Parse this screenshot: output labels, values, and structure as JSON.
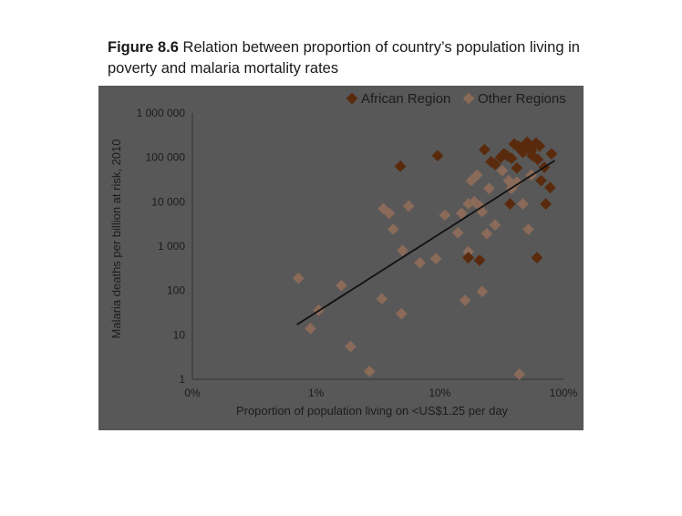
{
  "figure": {
    "label": "Figure 8.6",
    "caption": "Relation between proportion of country’s population living in poverty and malaria mortality rates"
  },
  "colors": {
    "background": "#585858",
    "african": "#5a2a0d",
    "other": "#8a6a58",
    "trend": "#111111"
  },
  "chart_data": {
    "type": "scatter",
    "title": "Relation between proportion of country’s population living in poverty and malaria mortality rates",
    "xlabel": "Proportion of population living on <US$1.25 per day",
    "ylabel": "Malaria deaths per billion at risk, 2010",
    "x_scale": "log",
    "y_scale": "log",
    "xlim": [
      0.1,
      100
    ],
    "ylim": [
      1,
      1000000
    ],
    "x_ticks": [
      {
        "value": 0.1,
        "label": "0%"
      },
      {
        "value": 1,
        "label": "1%"
      },
      {
        "value": 10,
        "label": "10%"
      },
      {
        "value": 100,
        "label": "100%"
      }
    ],
    "y_ticks": [
      {
        "value": 1,
        "label": "1"
      },
      {
        "value": 10,
        "label": "10"
      },
      {
        "value": 100,
        "label": "100"
      },
      {
        "value": 1000,
        "label": "1 000"
      },
      {
        "value": 10000,
        "label": "10 000"
      },
      {
        "value": 100000,
        "label": "100 000"
      },
      {
        "value": 1000000,
        "label": "1 000 000"
      }
    ],
    "legend_position": "top-right",
    "grid": false,
    "series": [
      {
        "name": "African Region",
        "color": "#5a2a0d",
        "points": [
          [
            4.8,
            63000
          ],
          [
            9.6,
            110000
          ],
          [
            17,
            550
          ],
          [
            21,
            480
          ],
          [
            23,
            150000
          ],
          [
            26,
            80000
          ],
          [
            28,
            70000
          ],
          [
            31,
            100000
          ],
          [
            33,
            120000
          ],
          [
            35,
            110000
          ],
          [
            37,
            9000
          ],
          [
            38,
            95000
          ],
          [
            40,
            200000
          ],
          [
            42,
            58000
          ],
          [
            43,
            180000
          ],
          [
            45,
            150000
          ],
          [
            47,
            130000
          ],
          [
            49,
            200000
          ],
          [
            51,
            220000
          ],
          [
            53,
            170000
          ],
          [
            55,
            140000
          ],
          [
            56,
            110000
          ],
          [
            58,
            190000
          ],
          [
            60,
            210000
          ],
          [
            61,
            550
          ],
          [
            62,
            90000
          ],
          [
            64,
            180000
          ],
          [
            66,
            30000
          ],
          [
            70,
            60000
          ],
          [
            72,
            9000
          ],
          [
            78,
            21000
          ],
          [
            80,
            120000
          ]
        ]
      },
      {
        "name": "Other Regions",
        "color": "#8a6a58",
        "points": [
          [
            0.72,
            190
          ],
          [
            0.9,
            14
          ],
          [
            1.05,
            36
          ],
          [
            1.6,
            130
          ],
          [
            1.9,
            5.5
          ],
          [
            2.7,
            1.5
          ],
          [
            3.4,
            65
          ],
          [
            3.5,
            7000
          ],
          [
            3.9,
            5500
          ],
          [
            4.2,
            2400
          ],
          [
            4.9,
            30
          ],
          [
            5.0,
            800
          ],
          [
            5.6,
            8000
          ],
          [
            6.9,
            420
          ],
          [
            9.3,
            520
          ],
          [
            11,
            5000
          ],
          [
            14,
            2000
          ],
          [
            15,
            5500
          ],
          [
            16,
            60
          ],
          [
            17,
            9000
          ],
          [
            17,
            750
          ],
          [
            18,
            30000
          ],
          [
            19,
            10000
          ],
          [
            20,
            40000
          ],
          [
            21,
            8000
          ],
          [
            22,
            6000
          ],
          [
            22,
            95
          ],
          [
            24,
            1900
          ],
          [
            25,
            20000
          ],
          [
            28,
            3000
          ],
          [
            32,
            50000
          ],
          [
            36,
            30000
          ],
          [
            38,
            20000
          ],
          [
            42,
            28000
          ],
          [
            44,
            1.3
          ],
          [
            47,
            9000
          ],
          [
            52,
            2400
          ],
          [
            55,
            40000
          ]
        ]
      }
    ],
    "trendline": {
      "x": [
        0.7,
        85
      ],
      "y": [
        17,
        85000
      ]
    }
  }
}
